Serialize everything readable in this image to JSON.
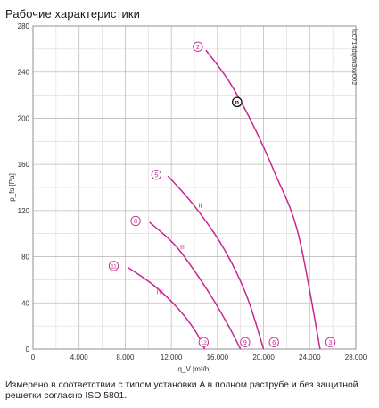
{
  "page": {
    "title": "Рабочие характеристики",
    "footnote": "Измерено в соответствии с типом установки A в полном раструбе и без защитной решетки согласно ISO 5801."
  },
  "chart_data": {
    "type": "line",
    "title": "Рабочие характеристики",
    "xlabel": "q_V [m³/h]",
    "ylabel": "p_fs [Pa]",
    "xlim": [
      0,
      28000
    ],
    "ylim": [
      0,
      280
    ],
    "x_ticks": [
      0,
      4000,
      8000,
      12000,
      16000,
      20000,
      24000,
      28000
    ],
    "x_tick_labels": [
      "0",
      "4.000",
      "8.000",
      "12.000",
      "16.000",
      "20.000",
      "24.000",
      "28.000"
    ],
    "y_ticks": [
      0,
      40,
      80,
      120,
      160,
      200,
      240,
      280
    ],
    "y_tick_labels": [
      "0",
      "40",
      "80",
      "120",
      "160",
      "200",
      "240",
      "280"
    ],
    "grid": true,
    "curve_color": "#c8258f",
    "code": "fc0714dq6n3xv002",
    "series": [
      {
        "name": "I",
        "points": [
          [
            15000,
            259
          ],
          [
            17000,
            232
          ],
          [
            19000,
            196
          ],
          [
            21000,
            152
          ],
          [
            23000,
            100
          ],
          [
            24900,
            0
          ]
        ],
        "start_marker": "2",
        "end_marker": "3",
        "start_marker_at": [
          14300,
          262
        ],
        "end_marker_at": [
          25800,
          6
        ],
        "label_at": [
          18200,
          210
        ]
      },
      {
        "name": "II",
        "points": [
          [
            11700,
            150
          ],
          [
            14000,
            124
          ],
          [
            16500,
            88
          ],
          [
            18500,
            47
          ],
          [
            20000,
            0
          ]
        ],
        "start_marker": "5",
        "end_marker": "6",
        "start_marker_at": [
          10700,
          151
        ],
        "end_marker_at": [
          20900,
          6
        ],
        "label_at": [
          14500,
          125
        ]
      },
      {
        "name": "III",
        "points": [
          [
            10100,
            110
          ],
          [
            12500,
            88
          ],
          [
            15000,
            53
          ],
          [
            16800,
            23
          ],
          [
            18000,
            0
          ]
        ],
        "start_marker": "8",
        "end_marker": "9",
        "start_marker_at": [
          8900,
          111
        ],
        "end_marker_at": [
          18400,
          6
        ],
        "label_at": [
          13000,
          89
        ]
      },
      {
        "name": "IV",
        "points": [
          [
            8200,
            71
          ],
          [
            10500,
            55
          ],
          [
            12500,
            36
          ],
          [
            14000,
            17
          ],
          [
            14900,
            0
          ]
        ],
        "start_marker": "11",
        "end_marker": "12",
        "start_marker_at": [
          7000,
          72
        ],
        "end_marker_at": [
          14800,
          6
        ],
        "label_at": [
          11000,
          50
        ]
      }
    ],
    "operating_point": {
      "label": "n",
      "x": 17700,
      "y": 214
    }
  }
}
